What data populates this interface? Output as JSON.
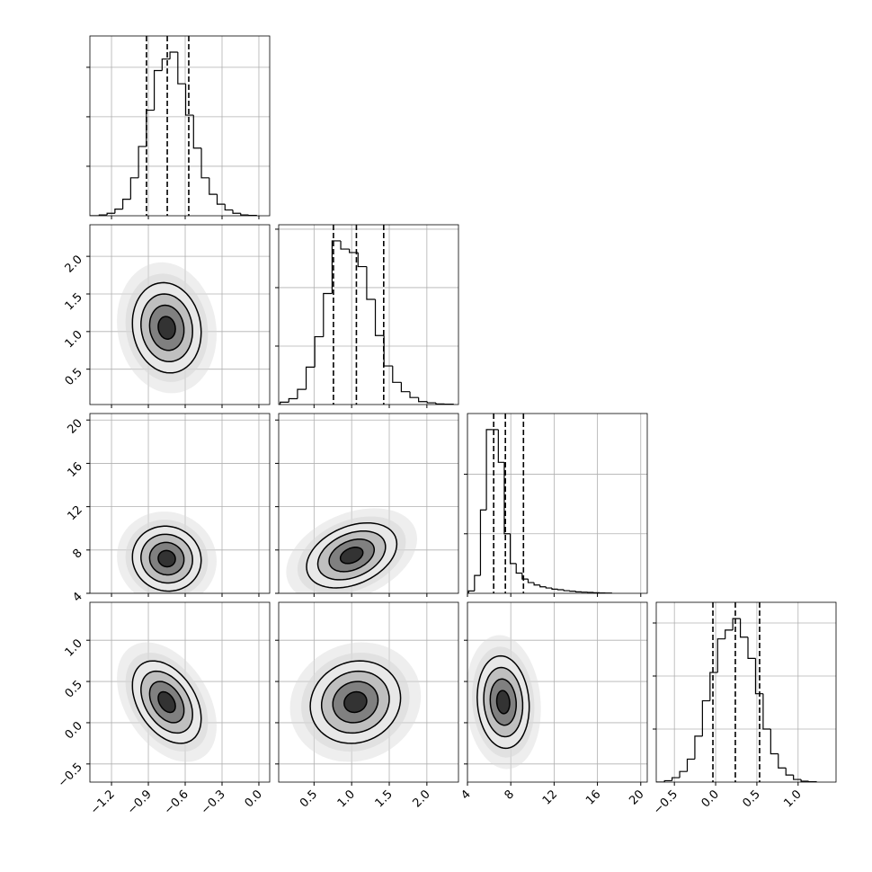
{
  "chart_data": [
    {
      "type": "histogram",
      "bins": [
        -1.3,
        -1.236,
        -1.172,
        -1.108,
        -1.044,
        -0.98,
        -0.916,
        -0.852,
        -0.788,
        -0.724,
        -0.66,
        -0.596,
        -0.532,
        -0.468,
        -0.404,
        -0.34,
        -0.276,
        -0.212,
        -0.148,
        -0.084,
        -0.02
      ],
      "counts": [
        5,
        15,
        40,
        100,
        230,
        420,
        640,
        880,
        950,
        992,
        800,
        610,
        410,
        230,
        130,
        70,
        35,
        15,
        5,
        2
      ],
      "quantiles": [
        -0.915,
        -0.746,
        -0.571
      ],
      "color": "#000000",
      "xlim": [
        -1.376,
        0.088
      ],
      "xticks": [
        -1.2,
        -0.9,
        -0.6,
        -0.3,
        0
      ],
      "ylim": [
        0,
        1090
      ],
      "yticks": [
        300,
        600,
        900
      ],
      "xtick_labels": false,
      "ytick_labels": false,
      "grid": true
    },
    {
      "type": "contour",
      "center": [
        -0.75,
        1.05
      ],
      "sigma": [
        0.14,
        0.3
      ],
      "rho": -0.1,
      "levels": [
        0.5,
        1,
        1.5,
        2
      ],
      "fills": [
        "#e8e8e8",
        "#bfbfbf",
        "#808080",
        "#333333"
      ],
      "scatter_color": "#d9d9d9",
      "color": "#000000",
      "xlim": [
        -1.376,
        0.088
      ],
      "xticks": [
        -1.2,
        -0.9,
        -0.6,
        -0.3,
        0
      ],
      "ylim": [
        0.03,
        2.42
      ],
      "yticks": [
        0.5,
        {
          "value": 1,
          "label": "1.0"
        },
        1.5,
        {
          "value": 2,
          "label": "2.0"
        }
      ],
      "xtick_labels": false,
      "ytick_labels": true,
      "grid": true
    },
    {
      "type": "histogram",
      "bins": [
        0.05,
        0.165,
        0.28,
        0.395,
        0.51,
        0.625,
        0.74,
        0.855,
        0.97,
        1.085,
        1.2,
        1.315,
        1.43,
        1.545,
        1.66,
        1.775,
        1.89,
        2.005,
        2.12,
        2.235,
        2.35
      ],
      "counts": [
        20,
        50,
        130,
        320,
        580,
        950,
        1400,
        1330,
        1300,
        1180,
        900,
        590,
        330,
        190,
        110,
        60,
        25,
        15,
        5,
        3
      ],
      "quantiles": [
        0.758,
        1.063,
        1.426
      ],
      "color": "#000000",
      "xlim": [
        0.03,
        2.42
      ],
      "xticks": [
        0.5,
        1,
        1.5,
        2
      ],
      "ylim": [
        0,
        1538
      ],
      "yticks": [
        500,
        1000,
        1500
      ],
      "xtick_labels": false,
      "ytick_labels": false,
      "grid": true
    },
    {
      "type": "contour",
      "center": [
        -0.75,
        7.2
      ],
      "sigma": [
        0.14,
        1.5
      ],
      "rho": -0.05,
      "levels": [
        0.5,
        1,
        1.5,
        2
      ],
      "fills": [
        "#e8e8e8",
        "#bfbfbf",
        "#808080",
        "#333333"
      ],
      "scatter_color": "#d9d9d9",
      "color": "#000000",
      "xlim": [
        -1.376,
        0.088
      ],
      "xticks": [
        -1.2,
        -0.9,
        -0.6,
        -0.3,
        0
      ],
      "ylim": [
        4,
        20.6
      ],
      "yticks": [
        4,
        8,
        12,
        16,
        20
      ],
      "xtick_labels": false,
      "ytick_labels": true,
      "grid": true
    },
    {
      "type": "contour",
      "center": [
        1.0,
        7.5
      ],
      "sigma": [
        0.3,
        1.5
      ],
      "rho": 0.35,
      "levels": [
        0.5,
        1,
        1.5,
        2
      ],
      "fills": [
        "#e8e8e8",
        "#bfbfbf",
        "#808080",
        "#333333"
      ],
      "scatter_color": "#d9d9d9",
      "color": "#000000",
      "xlim": [
        0.03,
        2.42
      ],
      "xticks": [
        0.5,
        1,
        1.5,
        2
      ],
      "ylim": [
        4,
        20.6
      ],
      "yticks": [
        4,
        8,
        12,
        16,
        20
      ],
      "xtick_labels": false,
      "ytick_labels": false,
      "grid": true
    },
    {
      "type": "histogram",
      "bins": [
        4.1,
        4.65,
        5.2,
        5.75,
        6.3,
        6.85,
        7.4,
        7.95,
        8.5,
        9.05,
        9.6,
        10.15,
        10.7,
        11.25,
        11.8,
        12.35,
        12.9,
        13.45,
        14.0,
        14.55,
        15.1,
        15.65,
        16.2,
        16.75,
        17.3
      ],
      "counts": [
        20,
        150,
        700,
        1375,
        1375,
        1100,
        500,
        250,
        170,
        120,
        90,
        70,
        55,
        45,
        35,
        30,
        22,
        18,
        12,
        10,
        8,
        5,
        3,
        2
      ],
      "quantiles": [
        6.42,
        7.5,
        9.17
      ],
      "color": "#000000",
      "xlim": [
        4,
        20.6
      ],
      "xticks": [
        4,
        8,
        12,
        16,
        20
      ],
      "ylim": [
        0,
        1510
      ],
      "yticks": [
        500,
        1000
      ],
      "xtick_labels": false,
      "ytick_labels": false,
      "grid": true
    },
    {
      "type": "contour",
      "center": [
        -0.75,
        0.25
      ],
      "sigma": [
        0.14,
        0.25
      ],
      "rho": -0.4,
      "levels": [
        0.5,
        1,
        1.5,
        2
      ],
      "fills": [
        "#e8e8e8",
        "#bfbfbf",
        "#808080",
        "#333333"
      ],
      "scatter_color": "#d9d9d9",
      "color": "#000000",
      "xlim": [
        -1.376,
        0.088
      ],
      "xticks": [
        {
          "value": -1.2,
          "label": "−1.2"
        },
        {
          "value": -0.9,
          "label": "−0.9"
        },
        {
          "value": -0.6,
          "label": "−0.6"
        },
        {
          "value": -0.3,
          "label": "−0.3"
        },
        {
          "value": 0,
          "label": "0.0"
        }
      ],
      "ylim": [
        -0.72,
        1.46
      ],
      "yticks": [
        {
          "value": -0.5,
          "label": "−0.5"
        },
        {
          "value": 0,
          "label": "0.0"
        },
        0.5,
        {
          "value": 1,
          "label": "1.0"
        }
      ],
      "xtick_labels": true,
      "ytick_labels": true,
      "grid": true
    },
    {
      "type": "contour",
      "center": [
        1.05,
        0.25
      ],
      "sigma": [
        0.3,
        0.25
      ],
      "rho": 0.1,
      "levels": [
        0.5,
        1,
        1.5,
        2
      ],
      "fills": [
        "#e8e8e8",
        "#bfbfbf",
        "#808080",
        "#333333"
      ],
      "scatter_color": "#d9d9d9",
      "color": "#000000",
      "xlim": [
        0.03,
        2.42
      ],
      "xticks": [
        0.5,
        {
          "value": 1,
          "label": "1.0"
        },
        1.5,
        {
          "value": 2,
          "label": "2.0"
        }
      ],
      "ylim": [
        -0.72,
        1.46
      ],
      "yticks": [
        -0.5,
        0,
        0.5,
        1
      ],
      "xtick_labels": true,
      "ytick_labels": false,
      "grid": true
    },
    {
      "type": "contour",
      "center": [
        7.3,
        0.25
      ],
      "sigma": [
        1.2,
        0.28
      ],
      "rho": -0.1,
      "levels": [
        0.5,
        1,
        1.5,
        2
      ],
      "fills": [
        "#e8e8e8",
        "#bfbfbf",
        "#808080",
        "#333333"
      ],
      "scatter_color": "#d9d9d9",
      "color": "#000000",
      "xlim": [
        4,
        20.6
      ],
      "xticks": [
        4,
        8,
        12,
        16,
        20
      ],
      "ylim": [
        -0.72,
        1.46
      ],
      "yticks": [
        -0.5,
        0,
        0.5,
        1
      ],
      "xtick_labels": true,
      "ytick_labels": false,
      "grid": true
    },
    {
      "type": "histogram",
      "bins": [
        -0.62,
        -0.528,
        -0.436,
        -0.344,
        -0.252,
        -0.16,
        -0.068,
        0.024,
        0.116,
        0.208,
        0.3,
        0.392,
        0.484,
        0.576,
        0.668,
        0.76,
        0.852,
        0.944,
        1.036,
        1.128,
        1.22
      ],
      "counts": [
        8,
        25,
        60,
        130,
        260,
        460,
        620,
        810,
        860,
        925,
        820,
        700,
        500,
        300,
        160,
        80,
        40,
        15,
        5,
        2
      ],
      "quantiles": [
        -0.033,
        0.239,
        0.533
      ],
      "color": "#000000",
      "xlim": [
        -0.72,
        1.46
      ],
      "xticks": [
        {
          "value": -0.5,
          "label": "−0.5"
        },
        {
          "value": 0,
          "label": "0.0"
        },
        0.5,
        {
          "value": 1,
          "label": "1.0"
        }
      ],
      "ylim": [
        0,
        1017
      ],
      "yticks": [
        300,
        600,
        900
      ],
      "xtick_labels": true,
      "ytick_labels": false,
      "grid": true
    }
  ]
}
